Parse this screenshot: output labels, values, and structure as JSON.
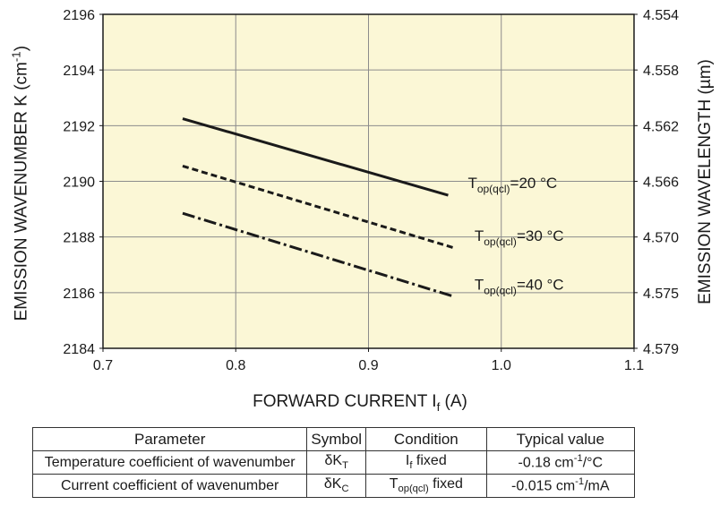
{
  "chart_data": {
    "type": "line",
    "xlabel_main": "FORWARD CURRENT I",
    "xlabel_sub": "f",
    "xlabel_unit": " (A)",
    "ylabel_left": "EMISSION WAVENUMBER K (cm",
    "ylabel_left_sup": "-1",
    "ylabel_left_end": ")",
    "ylabel_right": "EMISSION WAVELENGTH (µm)",
    "xlim": [
      0.7,
      1.1
    ],
    "ylim": [
      2184,
      2196
    ],
    "x_ticks": [
      "0.7",
      "0.8",
      "0.9",
      "1.0",
      "1.1"
    ],
    "y_ticks": [
      "2184",
      "2186",
      "2188",
      "2190",
      "2192",
      "2194",
      "2196"
    ],
    "y2_ticks": [
      "4.579",
      "4.575",
      "4.570",
      "4.566",
      "4.562",
      "4.558",
      "4.554"
    ],
    "grid": true,
    "series": [
      {
        "name_main": "T",
        "name_sub": "op(qcl)",
        "name_tail": "=20 °C",
        "style": "solid",
        "x": [
          0.76,
          0.96
        ],
        "y": [
          2192.25,
          2189.5
        ]
      },
      {
        "name_main": "T",
        "name_sub": "op(qcl)",
        "name_tail": "=30 °C",
        "style": "dashed",
        "x": [
          0.76,
          0.965
        ],
        "y": [
          2190.55,
          2187.6
        ]
      },
      {
        "name_main": "T",
        "name_sub": "op(qcl)",
        "name_tail": "=40 °C",
        "style": "dashdot",
        "x": [
          0.76,
          0.965
        ],
        "y": [
          2188.85,
          2185.85
        ]
      }
    ],
    "colors": {
      "plot_bg": "#fbf7d6",
      "grid": "#8c8c8c",
      "line": "#1a1a1a"
    }
  },
  "table": {
    "headers": [
      "Parameter",
      "Symbol",
      "Condition",
      "Typical value"
    ],
    "rows": [
      {
        "parameter": "Temperature coefficient of wavenumber",
        "symbol_main": "δK",
        "symbol_sub": "T",
        "condition_main": "I",
        "condition_sub": "f",
        "condition_tail": " fixed",
        "value_main": "-0.18 cm",
        "value_sup": "-1",
        "value_tail": "/°C"
      },
      {
        "parameter": "Current coefficient of wavenumber",
        "symbol_main": "δK",
        "symbol_sub": "C",
        "condition_main": "T",
        "condition_sub": "op(qcl)",
        "condition_tail": " fixed",
        "value_main": "-0.015 cm",
        "value_sup": "-1",
        "value_tail": "/mA"
      }
    ]
  }
}
